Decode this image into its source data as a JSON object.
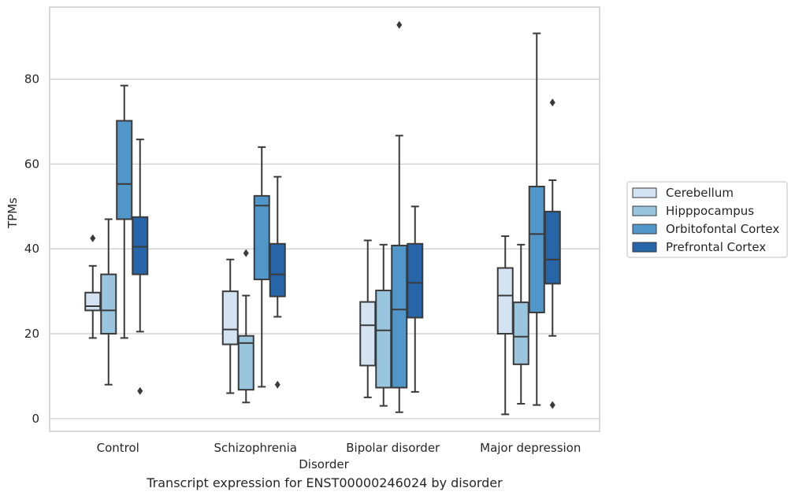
{
  "caption": "Transcript expression for ENST00000246024 by disorder",
  "colors": {
    "background": "#ffffff",
    "grid": "#cccccc",
    "frame": "#cccccc",
    "line": "#3a3a3a"
  },
  "chart_data": {
    "type": "box",
    "xlabel": "Disorder",
    "ylabel": "TPMs",
    "ylim": [
      -3,
      97
    ],
    "yticks": [
      0,
      20,
      40,
      60,
      80
    ],
    "grid": "horizontal",
    "legend_position": "right",
    "categories": [
      "Control",
      "Schizophrenia",
      "Bipolar disorder",
      "Major depression"
    ],
    "series": [
      {
        "name": "Cerebellum",
        "color": "#d3e3f2",
        "boxes": [
          {
            "whislo": 19,
            "q1": 25.5,
            "med": 26.5,
            "q3": 29.7,
            "whishi": 36,
            "fliers": [
              42.5
            ]
          },
          {
            "whislo": 6,
            "q1": 17.5,
            "med": 21,
            "q3": 30,
            "whishi": 37.5,
            "fliers": []
          },
          {
            "whislo": 5,
            "q1": 12.5,
            "med": 22,
            "q3": 27.5,
            "whishi": 42,
            "fliers": []
          },
          {
            "whislo": 1,
            "q1": 20,
            "med": 29,
            "q3": 35.5,
            "whishi": 43,
            "fliers": []
          }
        ]
      },
      {
        "name": "Hipppocampus",
        "color": "#9ac5de",
        "boxes": [
          {
            "whislo": 8,
            "q1": 20,
            "med": 25.5,
            "q3": 34,
            "whishi": 47,
            "fliers": []
          },
          {
            "whislo": 3.8,
            "q1": 6.8,
            "med": 17.8,
            "q3": 19.5,
            "whishi": 29,
            "fliers": [
              39
            ]
          },
          {
            "whislo": 3,
            "q1": 7.3,
            "med": 20.8,
            "q3": 30.2,
            "whishi": 41,
            "fliers": []
          },
          {
            "whislo": 3.5,
            "q1": 12.8,
            "med": 19.3,
            "q3": 27.4,
            "whishi": 41,
            "fliers": []
          }
        ]
      },
      {
        "name": "Orbitofontal Cortex",
        "color": "#5196c8",
        "boxes": [
          {
            "whislo": 19,
            "q1": 47,
            "med": 55.3,
            "q3": 70.2,
            "whishi": 78.5,
            "fliers": []
          },
          {
            "whislo": 7.5,
            "q1": 32.8,
            "med": 50.2,
            "q3": 52.5,
            "whishi": 64,
            "fliers": []
          },
          {
            "whislo": 1.5,
            "q1": 7.3,
            "med": 25.7,
            "q3": 40.8,
            "whishi": 66.7,
            "fliers": [
              92.8
            ]
          },
          {
            "whislo": 3.2,
            "q1": 25,
            "med": 43.5,
            "q3": 54.7,
            "whishi": 90.8,
            "fliers": []
          }
        ]
      },
      {
        "name": "Prefrontal Cortex",
        "color": "#2565a8",
        "boxes": [
          {
            "whislo": 20.5,
            "q1": 34,
            "med": 40.5,
            "q3": 47.5,
            "whishi": 65.8,
            "fliers": [
              6.5
            ]
          },
          {
            "whislo": 24,
            "q1": 28.8,
            "med": 34,
            "q3": 41.2,
            "whishi": 57,
            "fliers": [
              8
            ]
          },
          {
            "whislo": 6.3,
            "q1": 23.8,
            "med": 32,
            "q3": 41.2,
            "whishi": 50,
            "fliers": []
          },
          {
            "whislo": 19.5,
            "q1": 31.8,
            "med": 37.5,
            "q3": 48.8,
            "whishi": 56.2,
            "fliers": [
              3.2,
              74.5
            ]
          }
        ]
      }
    ]
  }
}
